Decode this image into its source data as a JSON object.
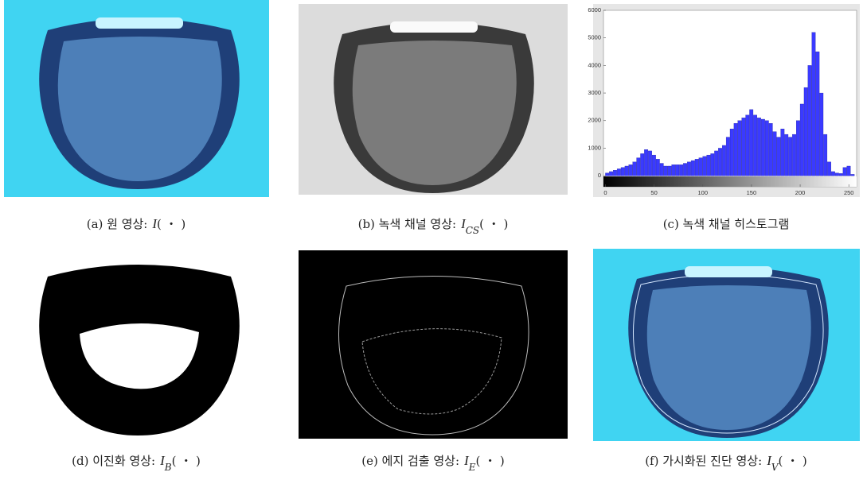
{
  "captions": [
    {
      "text": "(a) 원 영상:",
      "symbol": "I",
      "argument": "( ・ )"
    },
    {
      "text": "(b) 녹색 채널 영상:",
      "symbol": "I",
      "subscript": "CS",
      "argument": "( ・ )"
    },
    {
      "text": "(c) 녹색 채널 히스토그램"
    },
    {
      "text": "(d) 이진화 영상:",
      "symbol": "I",
      "subscript": "B",
      "argument": "( ・ )"
    },
    {
      "text": "(e) 에지 검출 영상:",
      "symbol": "I",
      "subscript": "E",
      "argument": "( ・ )"
    },
    {
      "text": "(f) 가시화된 진단 영상:",
      "symbol": "I",
      "subscript": "V",
      "argument": "( ・ )"
    }
  ],
  "chart_data": {
    "type": "histogram",
    "color": "#3a3aff",
    "bins": [
      0,
      4,
      8,
      12,
      16,
      20,
      24,
      28,
      32,
      36,
      40,
      44,
      48,
      52,
      56,
      60,
      64,
      68,
      72,
      76,
      80,
      84,
      88,
      92,
      96,
      100,
      104,
      108,
      112,
      116,
      120,
      124,
      128,
      132,
      136,
      140,
      144,
      148,
      152,
      156,
      160,
      164,
      168,
      172,
      176,
      180,
      184,
      188,
      192,
      196,
      200,
      204,
      208,
      212,
      216,
      220,
      224,
      228,
      232,
      236,
      240,
      244,
      248,
      252,
      256
    ],
    "counts": [
      100,
      150,
      200,
      250,
      300,
      350,
      400,
      500,
      650,
      800,
      950,
      900,
      750,
      600,
      450,
      350,
      350,
      400,
      400,
      400,
      450,
      500,
      550,
      600,
      650,
      700,
      750,
      800,
      900,
      1000,
      1100,
      1400,
      1700,
      1900,
      2000,
      2100,
      2200,
      2400,
      2200,
      2100,
      2050,
      2000,
      1900,
      1600,
      1400,
      1700,
      1500,
      1400,
      1500,
      2000,
      2600,
      3200,
      4000,
      5200,
      4500,
      3000,
      1500,
      500,
      150,
      100,
      80,
      300,
      350,
      50
    ],
    "xlim": [
      -2,
      258
    ],
    "ylim": [
      -400,
      6000
    ],
    "xticks": [
      0,
      50,
      100,
      150,
      200,
      250
    ],
    "yticks": [
      0,
      1000,
      2000,
      3000,
      4000,
      5000,
      6000
    ]
  }
}
